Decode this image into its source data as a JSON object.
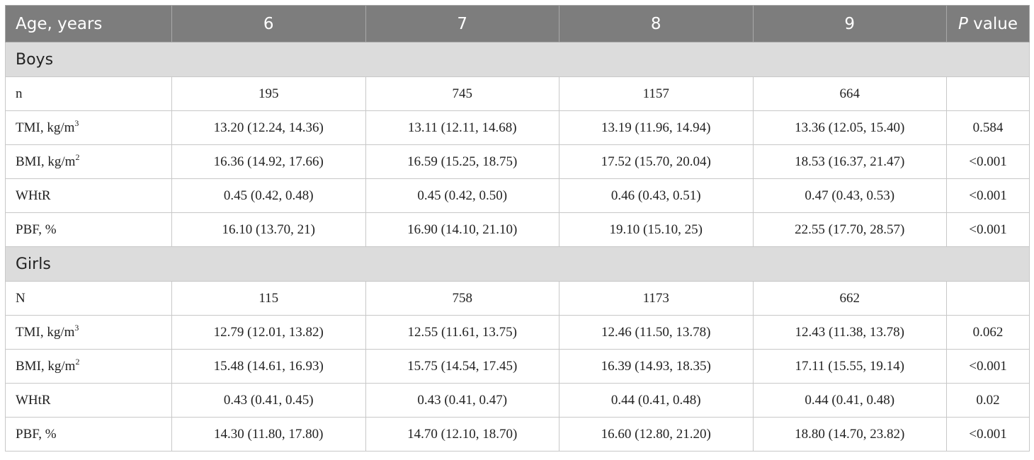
{
  "header": {
    "age_label": "Age, years",
    "ages": [
      "6",
      "7",
      "8",
      "9"
    ],
    "p_letter": "P",
    "p_rest": " value"
  },
  "sections": [
    {
      "title": "Boys",
      "rows": [
        {
          "label": "n",
          "sup": "",
          "values": [
            "195",
            "745",
            "1157",
            "664"
          ],
          "p": ""
        },
        {
          "label": "TMI, kg/m",
          "sup": "3",
          "values": [
            "13.20 (12.24, 14.36)",
            "13.11 (12.11, 14.68)",
            "13.19 (11.96, 14.94)",
            "13.36 (12.05, 15.40)"
          ],
          "p": "0.584"
        },
        {
          "label": "BMI, kg/m",
          "sup": "2",
          "values": [
            "16.36 (14.92, 17.66)",
            "16.59 (15.25, 18.75)",
            "17.52 (15.70, 20.04)",
            "18.53 (16.37, 21.47)"
          ],
          "p": "<0.001"
        },
        {
          "label": "WHtR",
          "sup": "",
          "values": [
            "0.45 (0.42, 0.48)",
            "0.45 (0.42, 0.50)",
            "0.46 (0.43, 0.51)",
            "0.47 (0.43, 0.53)"
          ],
          "p": "<0.001"
        },
        {
          "label": "PBF, %",
          "sup": "",
          "values": [
            "16.10 (13.70, 21)",
            "16.90 (14.10, 21.10)",
            "19.10 (15.10, 25)",
            "22.55 (17.70, 28.57)"
          ],
          "p": "<0.001"
        }
      ]
    },
    {
      "title": "Girls",
      "rows": [
        {
          "label": "N",
          "sup": "",
          "values": [
            "115",
            "758",
            "1173",
            "662"
          ],
          "p": ""
        },
        {
          "label": "TMI, kg/m",
          "sup": "3",
          "values": [
            "12.79 (12.01, 13.82)",
            "12.55 (11.61, 13.75)",
            "12.46 (11.50, 13.78)",
            "12.43 (11.38, 13.78)"
          ],
          "p": "0.062"
        },
        {
          "label": "BMI, kg/m",
          "sup": "2",
          "values": [
            "15.48 (14.61, 16.93)",
            "15.75 (14.54, 17.45)",
            "16.39 (14.93, 18.35)",
            "17.11 (15.55, 19.14)"
          ],
          "p": "<0.001"
        },
        {
          "label": "WHtR",
          "sup": "",
          "values": [
            "0.43 (0.41, 0.45)",
            "0.43 (0.41, 0.47)",
            "0.44 (0.41, 0.48)",
            "0.44 (0.41, 0.48)"
          ],
          "p": "0.02"
        },
        {
          "label": "PBF, %",
          "sup": "",
          "values": [
            "14.30 (11.80, 17.80)",
            "14.70 (12.10, 18.70)",
            "16.60 (12.80, 21.20)",
            "18.80 (14.70, 23.82)"
          ],
          "p": "<0.001"
        }
      ]
    }
  ]
}
